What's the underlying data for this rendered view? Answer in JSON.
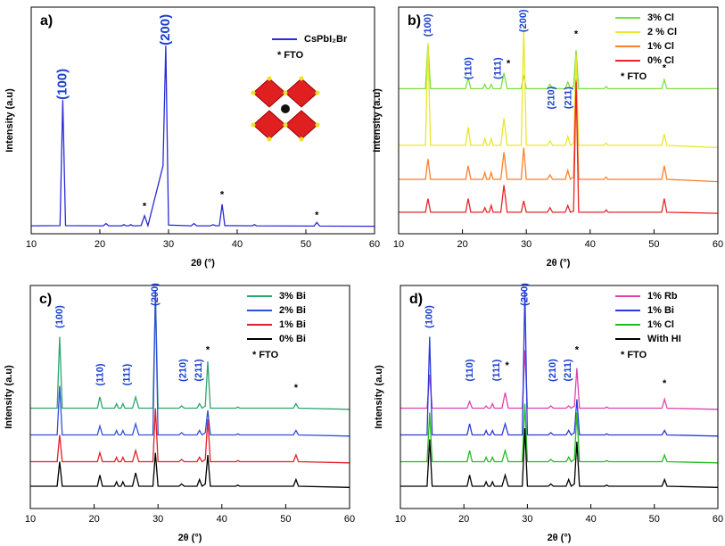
{
  "chart_data": [
    {
      "type": "line",
      "panel_label": "a)",
      "xlabel": "2θ (°)",
      "ylabel": "Intensity (a.u)",
      "xlim": [
        10,
        60
      ],
      "ylim": [
        0,
        100
      ],
      "xticks": [
        10,
        20,
        30,
        40,
        50,
        60
      ],
      "legend": "upper right",
      "x": [
        10,
        14.2,
        14.6,
        15.0,
        20.5,
        20.9,
        21.3,
        23.2,
        23.5,
        23.8,
        24.2,
        24.5,
        24.8,
        26.0,
        26.5,
        27.0,
        29.2,
        29.6,
        30.0,
        33.3,
        33.7,
        34.1,
        36.1,
        36.5,
        36.9,
        37.4,
        37.8,
        38.2,
        42.2,
        42.5,
        42.8,
        51.2,
        51.6,
        52.0,
        60
      ],
      "series": [
        {
          "name": "CsPbI₂Br",
          "color": "#2a2ad8",
          "values": [
            3.5,
            3.6,
            59,
            3.6,
            3.5,
            4.5,
            3.5,
            3.5,
            4,
            3.5,
            3.5,
            4,
            3.5,
            3.6,
            8,
            3.6,
            30,
            83,
            3.8,
            3.5,
            4.5,
            3.5,
            3.5,
            4,
            3.5,
            3.6,
            13,
            3.6,
            3.5,
            4,
            3.5,
            3.4,
            5,
            3.4,
            3.3
          ]
        }
      ],
      "legend_notes": [
        "*  FTO"
      ],
      "annotations": [
        {
          "text": "(100)",
          "x": 14.6,
          "y": 66
        },
        {
          "text": "(200)",
          "x": 29.6,
          "y": 90
        },
        {
          "text": "*",
          "x": 26.5,
          "y": 12
        },
        {
          "text": "*",
          "x": 37.8,
          "y": 17
        },
        {
          "text": "*",
          "x": 51.6,
          "y": 8
        }
      ]
    },
    {
      "type": "line",
      "panel_label": "b)",
      "xlabel": "2θ (°)",
      "ylabel": "Intensity (a.u)",
      "xlim": [
        10,
        60
      ],
      "ylim": [
        0,
        100
      ],
      "xticks": [
        10,
        20,
        30,
        40,
        50,
        60
      ],
      "legend": "upper right",
      "x": [
        10,
        14.2,
        14.6,
        15.0,
        20.5,
        20.9,
        21.3,
        23.2,
        23.5,
        23.8,
        24.2,
        24.5,
        24.8,
        26.0,
        26.5,
        27.0,
        29.2,
        29.6,
        30.0,
        33.3,
        33.7,
        34.1,
        36.1,
        36.5,
        36.9,
        37.4,
        37.8,
        38.2,
        42.2,
        42.5,
        42.8,
        51.2,
        51.6,
        52.0,
        60
      ],
      "series": [
        {
          "name": "3% Cl",
          "color": "#7ee03c",
          "values": [
            64,
            64,
            84,
            64,
            64,
            69,
            64,
            64,
            66,
            64,
            64,
            66,
            64,
            64,
            71,
            64,
            64,
            70,
            64,
            64,
            66,
            64,
            64,
            67,
            64,
            65,
            81,
            64,
            64,
            65,
            64,
            64,
            68,
            64,
            64
          ]
        },
        {
          "name": "2 % Cl",
          "color": "#e8e82a",
          "values": [
            39,
            39,
            84,
            39,
            39,
            47,
            39,
            39,
            42,
            39,
            39,
            42,
            39,
            39,
            51,
            39,
            39,
            91,
            39,
            39,
            41,
            39,
            39,
            43,
            39,
            40,
            79,
            39,
            39,
            40,
            39,
            39,
            44,
            39,
            38
          ]
        },
        {
          "name": "1%  Cl",
          "color": "#ff7f27",
          "values": [
            24,
            24,
            33,
            24,
            24,
            30,
            24,
            24,
            27,
            24,
            24,
            27,
            24,
            24,
            36,
            24,
            24,
            38,
            24,
            24,
            26,
            24,
            24,
            28,
            24,
            25,
            68,
            24,
            24,
            25,
            24,
            24,
            30,
            24,
            23
          ]
        },
        {
          "name": "0%  Cl",
          "color": "#e8242a",
          "values": [
            9.5,
            9.5,
            15.5,
            9.5,
            9.5,
            15.5,
            9.5,
            9.5,
            11.5,
            9.5,
            9.5,
            12.5,
            9.5,
            9.5,
            21.5,
            9.5,
            9.5,
            14.5,
            9.5,
            9.5,
            11.5,
            9.5,
            9.5,
            12.5,
            9.5,
            10,
            67,
            9.5,
            9.5,
            10.5,
            9.5,
            9.5,
            15.5,
            9.5,
            9
          ]
        }
      ],
      "legend_notes": [
        "*  FTO"
      ],
      "annotations": [
        {
          "text": "(100)",
          "x": 14.6,
          "y": 92
        },
        {
          "text": "(110)",
          "x": 21,
          "y": 73
        },
        {
          "text": "(111)",
          "x": 25.6,
          "y": 73
        },
        {
          "text": "*",
          "x": 27.2,
          "y": 75
        },
        {
          "text": "(200)",
          "x": 29.6,
          "y": 94
        },
        {
          "text": "*",
          "x": 37.8,
          "y": 88
        },
        {
          "text": "(210)",
          "x": 34,
          "y": 60
        },
        {
          "text": "(211)",
          "x": 36.6,
          "y": 60
        },
        {
          "text": "*",
          "x": 51.6,
          "y": 73
        }
      ]
    },
    {
      "type": "line",
      "panel_label": "c)",
      "xlabel": "2θ (°)",
      "ylabel": "Intensity (a.u)",
      "xlim": [
        10,
        60
      ],
      "ylim": [
        0,
        100
      ],
      "xticks": [
        10,
        20,
        30,
        40,
        50,
        60
      ],
      "legend": "upper right",
      "x": [
        10,
        14.2,
        14.6,
        15.0,
        20.5,
        20.9,
        21.3,
        23.2,
        23.5,
        23.8,
        24.2,
        24.5,
        24.8,
        26.0,
        26.5,
        27.0,
        29.2,
        29.6,
        30.0,
        33.3,
        33.7,
        34.1,
        36.1,
        36.5,
        36.9,
        37.4,
        37.8,
        38.2,
        42.2,
        42.5,
        42.8,
        51.2,
        51.6,
        52.0,
        60
      ],
      "series": [
        {
          "name": "3% Bi",
          "color": "#2ca56e",
          "values": [
            45,
            45,
            77,
            45,
            45,
            50,
            45,
            45,
            47,
            45,
            45,
            47,
            45,
            45,
            50,
            45,
            45,
            96,
            45,
            45,
            46,
            45,
            45,
            47,
            45,
            46,
            66,
            45,
            45,
            45.5,
            45,
            45,
            47,
            45,
            44.5
          ]
        },
        {
          "name": "2% Bi",
          "color": "#3050d8",
          "values": [
            33,
            33,
            55,
            33,
            33,
            37,
            33,
            33,
            35,
            33,
            33,
            35,
            33,
            33,
            38,
            33,
            33,
            98,
            33,
            33,
            34,
            33,
            33,
            35,
            33,
            34,
            44,
            33,
            33,
            33.5,
            33,
            33,
            35,
            33,
            32.5
          ]
        },
        {
          "name": "1% Bi",
          "color": "#e0202a",
          "values": [
            21,
            21,
            33,
            21,
            21,
            25,
            21,
            21,
            23,
            21,
            21,
            23,
            21,
            21,
            26,
            21,
            21,
            45,
            21,
            21,
            22,
            21,
            21,
            23,
            21,
            22,
            40,
            21,
            21,
            21.5,
            21,
            21,
            24,
            21,
            20.5
          ]
        },
        {
          "name": "0% Bi",
          "color": "#000000",
          "values": [
            10,
            10,
            21,
            10,
            10,
            15,
            10,
            10,
            12,
            10,
            10,
            12,
            10,
            10,
            16,
            10,
            10,
            25,
            10,
            10,
            11,
            10,
            10,
            13,
            10,
            11,
            24,
            10,
            10,
            10.5,
            10,
            10,
            13,
            10,
            9.5
          ]
        }
      ],
      "legend_notes": [
        "*  FTO"
      ],
      "annotations": [
        {
          "text": "(100)",
          "x": 14.6,
          "y": 86
        },
        {
          "text": "(110)",
          "x": 21,
          "y": 60
        },
        {
          "text": "(111)",
          "x": 25.2,
          "y": 60
        },
        {
          "text": "(200)",
          "x": 29.6,
          "y": 96
        },
        {
          "text": "(210)",
          "x": 34,
          "y": 62
        },
        {
          "text": "(211)",
          "x": 36.4,
          "y": 62
        },
        {
          "text": "*",
          "x": 37.8,
          "y": 71
        },
        {
          "text": "*",
          "x": 51.6,
          "y": 54
        }
      ]
    },
    {
      "type": "line",
      "panel_label": "d)",
      "xlabel": "2θ (°)",
      "ylabel": "Intensity (a.u)",
      "xlim": [
        10,
        60
      ],
      "ylim": [
        0,
        100
      ],
      "xticks": [
        10,
        20,
        30,
        40,
        50,
        60
      ],
      "legend": "upper right",
      "x": [
        10,
        14.2,
        14.6,
        15.0,
        20.5,
        20.9,
        21.3,
        23.2,
        23.5,
        23.8,
        24.2,
        24.5,
        24.8,
        26.0,
        26.5,
        27.0,
        29.2,
        29.6,
        30.0,
        33.3,
        33.7,
        34.1,
        36.1,
        36.5,
        36.9,
        37.4,
        37.8,
        38.2,
        42.2,
        42.5,
        42.8,
        51.2,
        51.6,
        52.0,
        60
      ],
      "series": [
        {
          "name": "1% Rb",
          "color": "#e040b0",
          "values": [
            45,
            45,
            60,
            45,
            45,
            48,
            45,
            45,
            46,
            45,
            45,
            47,
            45,
            45,
            52,
            45,
            45,
            71,
            45,
            45,
            46,
            45,
            45,
            46,
            45,
            46,
            63,
            45,
            45,
            45.5,
            45,
            45,
            49,
            45,
            44.5
          ]
        },
        {
          "name": "1% Bi",
          "color": "#2a3ad8",
          "values": [
            33,
            33,
            77,
            33,
            33,
            38,
            33,
            33,
            35,
            33,
            33,
            35,
            33,
            33,
            38,
            33,
            33,
            98,
            33,
            33,
            34,
            33,
            33,
            35,
            33,
            34,
            49,
            33,
            33,
            33.5,
            33,
            33,
            35,
            33,
            32.5
          ]
        },
        {
          "name": "1% Cl",
          "color": "#22bb22",
          "values": [
            21,
            21,
            43,
            21,
            21,
            26,
            21,
            21,
            23,
            21,
            21,
            23,
            21,
            21,
            26,
            21,
            21,
            47,
            21,
            21,
            22,
            21,
            21,
            23,
            21,
            22,
            43,
            21,
            21,
            21.5,
            21,
            21,
            24,
            21,
            20.5
          ]
        },
        {
          "name": "With HI",
          "color": "#000000",
          "values": [
            10,
            10,
            31,
            10,
            10,
            15,
            10,
            10,
            12,
            10,
            10,
            12,
            10,
            10,
            15,
            10,
            10,
            36,
            10,
            10,
            11,
            10,
            10,
            13,
            10,
            11,
            30,
            10,
            10,
            10.5,
            10,
            10,
            13,
            10,
            9.5
          ]
        }
      ],
      "legend_notes": [
        "*  FTO"
      ],
      "annotations": [
        {
          "text": "(100)",
          "x": 14.6,
          "y": 86
        },
        {
          "text": "(110)",
          "x": 21,
          "y": 62
        },
        {
          "text": "(111)",
          "x": 25.2,
          "y": 62
        },
        {
          "text": "*",
          "x": 26.8,
          "y": 64
        },
        {
          "text": "(200)",
          "x": 29.6,
          "y": 96
        },
        {
          "text": "(210)",
          "x": 34,
          "y": 62
        },
        {
          "text": "(211)",
          "x": 36.4,
          "y": 62
        },
        {
          "text": "*",
          "x": 37.8,
          "y": 71
        },
        {
          "text": "*",
          "x": 51.6,
          "y": 56
        }
      ]
    }
  ]
}
